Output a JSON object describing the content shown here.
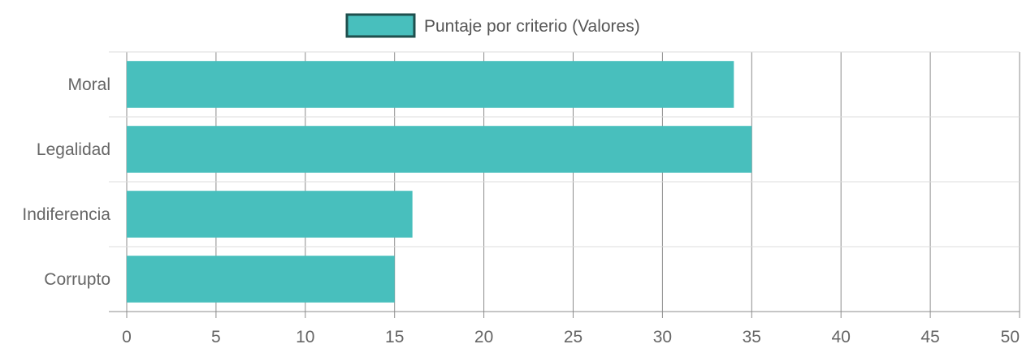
{
  "chart_data": {
    "type": "bar",
    "orientation": "horizontal",
    "categories": [
      "Moral",
      "Legalidad",
      "Indiferencia",
      "Corrupto"
    ],
    "series": [
      {
        "name": "Puntaje por criterio (Valores)",
        "values": [
          34,
          35,
          16,
          15
        ]
      }
    ],
    "xlim": [
      0,
      50
    ],
    "xticks": [
      0,
      5,
      10,
      15,
      20,
      25,
      30,
      35,
      40,
      45,
      50
    ],
    "grid": true,
    "legend_position": "top-center",
    "bar_color": "#48bfbd",
    "legend_border_color": "#1f4f4d"
  }
}
